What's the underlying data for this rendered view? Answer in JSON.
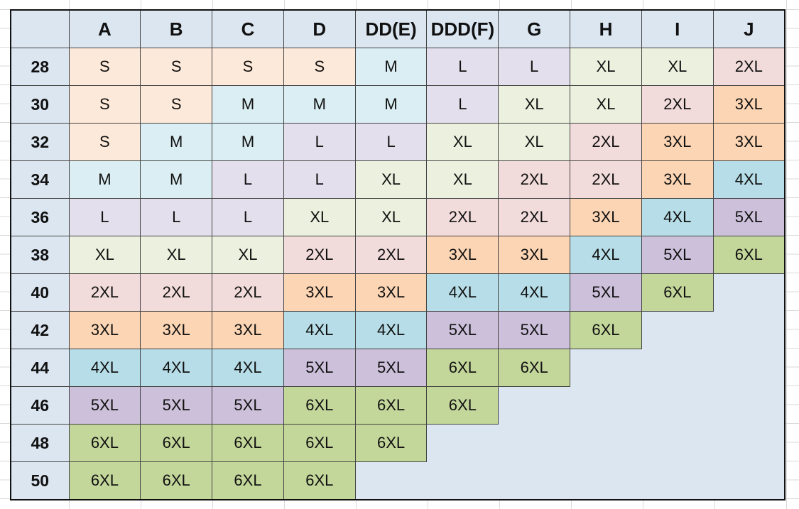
{
  "table": {
    "columns": [
      "A",
      "B",
      "C",
      "D",
      "DD(E)",
      "DDD(F)",
      "G",
      "H",
      "I",
      "J"
    ],
    "rows": [
      {
        "band": "28",
        "sizes": [
          "S",
          "S",
          "S",
          "S",
          "M",
          "L",
          "L",
          "XL",
          "XL",
          "2XL"
        ]
      },
      {
        "band": "30",
        "sizes": [
          "S",
          "S",
          "M",
          "M",
          "M",
          "L",
          "XL",
          "XL",
          "2XL",
          "3XL"
        ]
      },
      {
        "band": "32",
        "sizes": [
          "S",
          "M",
          "M",
          "L",
          "L",
          "XL",
          "XL",
          "2XL",
          "3XL",
          "3XL"
        ]
      },
      {
        "band": "34",
        "sizes": [
          "M",
          "M",
          "L",
          "L",
          "XL",
          "XL",
          "2XL",
          "2XL",
          "3XL",
          "4XL"
        ]
      },
      {
        "band": "36",
        "sizes": [
          "L",
          "L",
          "L",
          "XL",
          "XL",
          "2XL",
          "2XL",
          "3XL",
          "4XL",
          "5XL"
        ]
      },
      {
        "band": "38",
        "sizes": [
          "XL",
          "XL",
          "XL",
          "2XL",
          "2XL",
          "3XL",
          "3XL",
          "4XL",
          "5XL",
          "6XL"
        ]
      },
      {
        "band": "40",
        "sizes": [
          "2XL",
          "2XL",
          "2XL",
          "3XL",
          "3XL",
          "4XL",
          "4XL",
          "5XL",
          "6XL"
        ]
      },
      {
        "band": "42",
        "sizes": [
          "3XL",
          "3XL",
          "3XL",
          "4XL",
          "4XL",
          "5XL",
          "5XL",
          "6XL"
        ]
      },
      {
        "band": "44",
        "sizes": [
          "4XL",
          "4XL",
          "4XL",
          "5XL",
          "5XL",
          "6XL",
          "6XL"
        ]
      },
      {
        "band": "46",
        "sizes": [
          "5XL",
          "5XL",
          "5XL",
          "6XL",
          "6XL",
          "6XL"
        ]
      },
      {
        "band": "48",
        "sizes": [
          "6XL",
          "6XL",
          "6XL",
          "6XL",
          "6XL"
        ]
      },
      {
        "band": "50",
        "sizes": [
          "6XL",
          "6XL",
          "6XL",
          "6XL"
        ]
      }
    ],
    "size_colors": {
      "S": "#fde9d9",
      "M": "#daeef3",
      "L": "#e4dfec",
      "XL": "#ebf1de",
      "2XL": "#f2dcdb",
      "3XL": "#fcd5b4",
      "4XL": "#b7dee8",
      "5XL": "#ccc0da",
      "6XL": "#c4d79b"
    },
    "empty_color": "#dce6f1"
  }
}
